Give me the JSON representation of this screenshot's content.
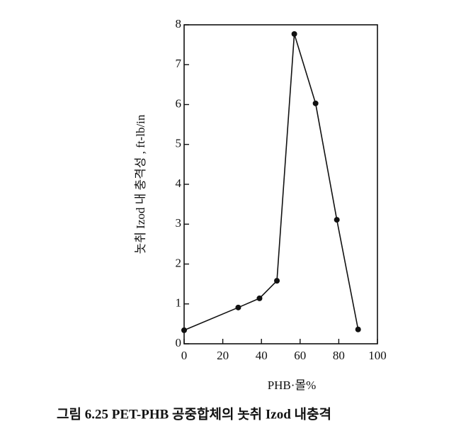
{
  "chart_data": {
    "type": "line",
    "x_label": "PHB·몰%",
    "y_label": "놋취 Izod 내 충격성 , ft-lb/in",
    "caption": "그림 6.25  PET-PHB 공중합체의 놋취 Izod 내충격",
    "x": [
      0,
      28,
      39,
      48,
      57,
      68,
      79,
      90
    ],
    "series": [
      {
        "color": "#111111",
        "values": [
          0.34,
          0.91,
          1.14,
          1.58,
          7.77,
          6.03,
          3.11,
          0.36
        ]
      }
    ],
    "xlim": [
      0,
      100
    ],
    "xticks": [
      0,
      20,
      40,
      60,
      80,
      100
    ],
    "ylim": [
      0,
      8
    ],
    "yticks": [
      0,
      1,
      2,
      3,
      4,
      5,
      6,
      7,
      8
    ]
  }
}
